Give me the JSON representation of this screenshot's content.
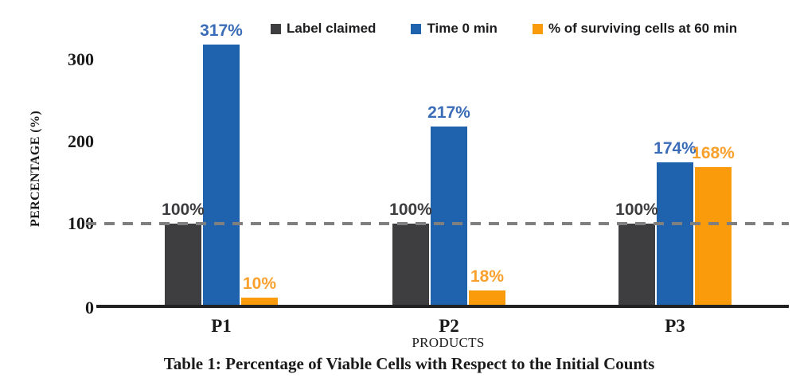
{
  "chart_data": {
    "type": "bar",
    "caption": "Table 1: Percentage of Viable Cells with Respect to the Initial Counts",
    "xlabel": "PRODUCTS",
    "ylabel": "PERCENTAGE (%)",
    "categories": [
      "P1",
      "P2",
      "P3"
    ],
    "series": [
      {
        "name": "Label claimed",
        "values": [
          100,
          100,
          100
        ],
        "color": "#3e3e40",
        "label_color": "#3d3d40"
      },
      {
        "name": "Time 0 min",
        "values": [
          317,
          217,
          174
        ],
        "color": "#1f63ae",
        "label_color": "#3a6cb8"
      },
      {
        "name": "% of surviving cells at 60 min",
        "values": [
          10,
          18,
          168
        ],
        "color": "#f99b0b",
        "label_color": "#f9a02d"
      }
    ],
    "value_label_suffix": "%",
    "yticks": [
      0,
      100,
      200,
      300
    ],
    "ylim": [
      0,
      340
    ],
    "grid": "off",
    "legend_position": "top",
    "reference_line": {
      "y": 100,
      "style": "dashed",
      "color": "#7f7f7f"
    },
    "axis_color": "#222222"
  }
}
